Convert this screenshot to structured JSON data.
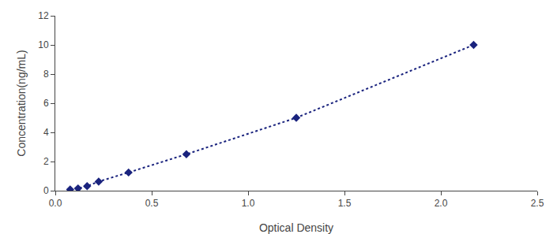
{
  "chart_data": {
    "type": "line",
    "x": [
      0.077,
      0.118,
      0.165,
      0.225,
      0.38,
      0.68,
      1.25,
      2.17
    ],
    "values": [
      0.078,
      0.156,
      0.313,
      0.625,
      1.25,
      2.5,
      5.0,
      10.0
    ],
    "color": "#1a237e",
    "marker": "diamond",
    "line_style": "dotted",
    "xlabel": "Optical Density",
    "ylabel": "Concentration(ng/mL)",
    "xlim": [
      0,
      2.5
    ],
    "ylim": [
      0,
      12
    ],
    "xticks": [
      {
        "value": 0,
        "label": "0.0"
      },
      0.5,
      {
        "value": 1.0,
        "label": "1.0"
      },
      1.5,
      {
        "value": 2.0,
        "label": "2.0"
      },
      2.5
    ],
    "yticks": [
      0,
      2,
      4,
      6,
      8,
      10,
      12
    ],
    "grid": false
  }
}
